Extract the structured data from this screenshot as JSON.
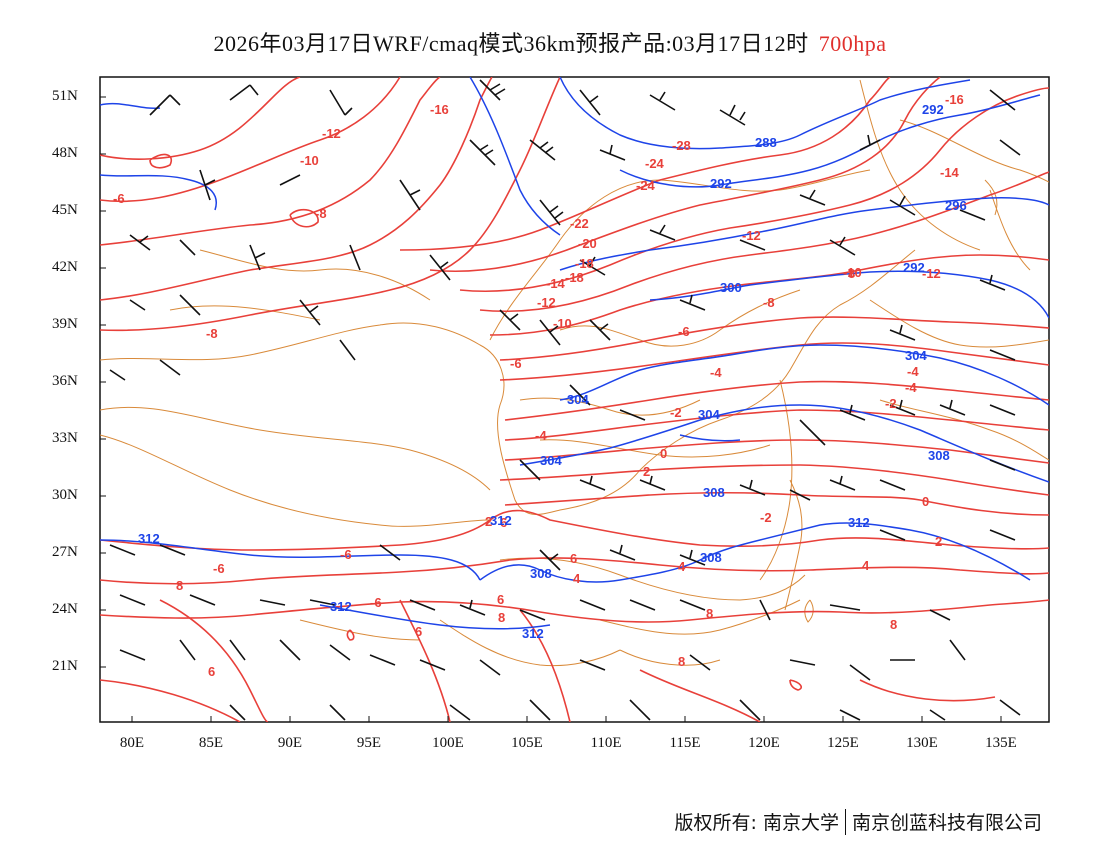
{
  "title": {
    "main": "2026年03月17日WRF/cmaq模式36km预报产品:03月17日12时",
    "level": "700hpa"
  },
  "colors": {
    "temperature": "#e8403a",
    "geopotential": "#1e44e8",
    "border": "#d98a3a",
    "wind": "#111111",
    "level_text": "#e0302c"
  },
  "axes": {
    "lat_labels": [
      "51N",
      "48N",
      "45N",
      "42N",
      "39N",
      "36N",
      "33N",
      "30N",
      "27N",
      "24N",
      "21N"
    ],
    "lon_labels": [
      "80E",
      "85E",
      "90E",
      "95E",
      "100E",
      "105E",
      "110E",
      "115E",
      "120E",
      "125E",
      "130E",
      "135E"
    ]
  },
  "temperature_labels": [
    "-16",
    "-12",
    "-10",
    "-6",
    "-8",
    "-18",
    "-28",
    "-24",
    "-24",
    "-22",
    "-20",
    "-18",
    "-14",
    "-12",
    "-10",
    "-8",
    "-12",
    "-16",
    "-14",
    "-12",
    "-10",
    "-8",
    "-6",
    "-4",
    "-4",
    "-2",
    "-4",
    "-2",
    "0",
    "2",
    "-6",
    "-4",
    "4",
    "-2",
    "0",
    "2",
    "4",
    "2",
    "-6",
    "-6",
    "6",
    "4",
    "-6",
    "8",
    "6",
    "8",
    "6",
    "8",
    "8",
    "8",
    "6",
    "6",
    "8"
  ],
  "height_labels": [
    "292",
    "288",
    "292",
    "296",
    "292",
    "300",
    "304",
    "304",
    "304",
    "304",
    "308",
    "308",
    "308",
    "308",
    "312",
    "312",
    "312",
    "312",
    "312"
  ],
  "footer": {
    "copyright": "版权所有: 南京大学",
    "company": "南京创蓝科技有限公司"
  }
}
